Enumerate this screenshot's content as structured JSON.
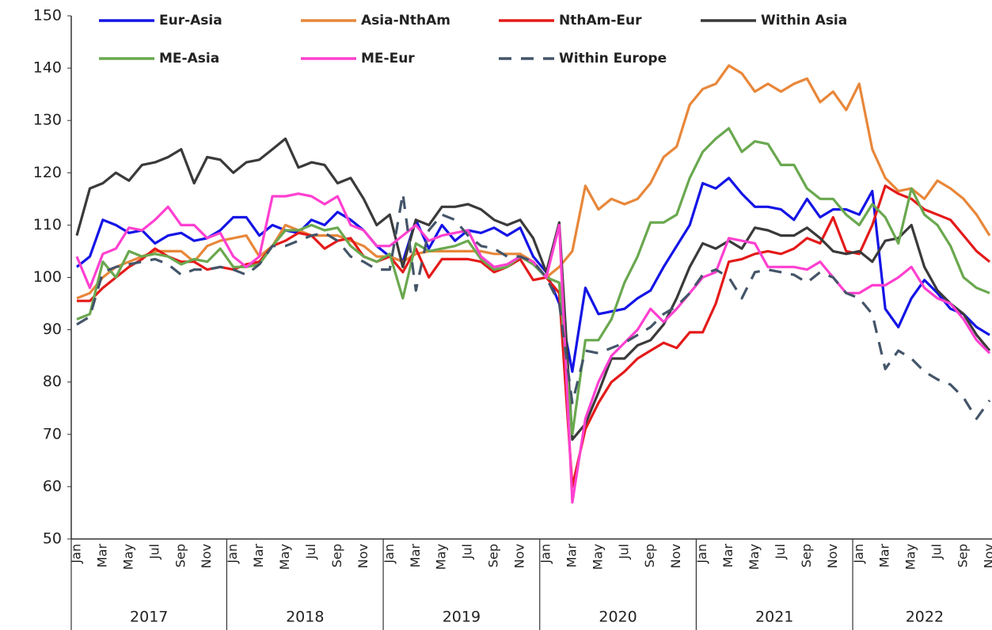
{
  "chart_data": {
    "type": "line",
    "categories": [
      "Jan",
      null,
      "Mar",
      null,
      "May",
      null,
      "Jul",
      null,
      "Sep",
      null,
      "Nov",
      null,
      "Jan",
      null,
      "Mar",
      null,
      "May",
      null,
      "Jul",
      null,
      "Sep",
      null,
      "Nov",
      null,
      "Jan",
      null,
      "Mar",
      null,
      "May",
      null,
      "Jul",
      null,
      "Sep",
      null,
      "Nov",
      null,
      "Jan",
      null,
      "Mar",
      null,
      "May",
      null,
      "Jul",
      null,
      "Sep",
      null,
      "Nov",
      null,
      "Jan",
      null,
      "Mar",
      null,
      "May",
      null,
      "Jul",
      null,
      "Sep",
      null,
      "Nov",
      null,
      "Jan",
      null,
      "Mar",
      null,
      "May",
      null,
      "Jul",
      null,
      "Sep",
      null,
      "Nov"
    ],
    "years": [
      "2017",
      "2018",
      "2019",
      "2020",
      "2021",
      "2022"
    ],
    "ylim": [
      50,
      150
    ],
    "yticks": [
      50,
      60,
      70,
      80,
      90,
      100,
      110,
      120,
      130,
      140,
      150
    ],
    "series": [
      {
        "name": "Eur-Asia",
        "color": "#1414e6",
        "values": [
          102,
          104,
          111,
          110,
          108.5,
          109,
          106.5,
          108,
          108.5,
          107,
          107.5,
          109,
          111.5,
          111.5,
          108,
          110,
          109,
          108.5,
          111,
          110,
          112.5,
          111,
          109,
          106,
          104,
          103,
          111,
          105.5,
          110,
          107,
          109,
          108.5,
          109.5,
          108,
          109.5,
          104,
          101,
          95,
          82,
          98,
          93,
          93.5,
          94,
          96,
          97.5,
          102,
          106,
          110,
          118,
          117,
          119,
          116,
          113.5,
          113.5,
          113,
          111,
          115,
          111.5,
          113,
          113,
          112,
          116.5,
          94,
          90.5,
          96,
          99.5,
          97,
          94,
          93,
          90.5,
          89
        ]
      },
      {
        "name": "Asia-NthAm",
        "color": "#e8873a",
        "values": [
          96,
          97,
          100,
          102,
          103,
          104,
          105,
          105,
          105,
          103,
          106,
          107,
          107.5,
          108,
          104,
          106,
          110,
          109,
          108,
          108,
          108,
          107,
          106,
          104,
          104,
          103,
          104.5,
          105,
          105,
          105,
          105,
          105,
          104.5,
          104.5,
          104.5,
          103,
          100,
          102,
          105,
          117.5,
          113,
          115,
          114,
          115,
          118,
          123,
          125,
          133,
          136,
          137,
          140.5,
          139,
          135.5,
          137,
          135.5,
          137,
          138,
          133.5,
          135.5,
          132,
          137,
          124.5,
          119,
          116.5,
          117,
          115,
          118.5,
          117,
          115,
          112,
          108
        ]
      },
      {
        "name": "NthAm-Eur",
        "color": "#e41a1a",
        "values": [
          95.5,
          95.5,
          98,
          100,
          102,
          103.5,
          105.5,
          104,
          103,
          103,
          101.5,
          102,
          101.5,
          102.5,
          103,
          106,
          107,
          108.5,
          108,
          105.5,
          107,
          107.5,
          104,
          103,
          104,
          101,
          105.5,
          100,
          103.5,
          103.5,
          103.5,
          103,
          101,
          102,
          103.5,
          99.5,
          100,
          97,
          60,
          71,
          76,
          80,
          82,
          84.5,
          86,
          87.5,
          86.5,
          89.5,
          89.5,
          95,
          103,
          103.5,
          104.5,
          105,
          104.5,
          105.5,
          107.5,
          106.5,
          111.5,
          105,
          104.5,
          110,
          117.5,
          116,
          115,
          113,
          112,
          111,
          108,
          105,
          103
        ]
      },
      {
        "name": "Within Asia",
        "color": "#3a3a3a",
        "values": [
          108,
          117,
          118,
          120,
          118.5,
          121.5,
          122,
          123,
          124.5,
          118,
          123,
          122.5,
          120,
          122,
          122.5,
          124.5,
          126.5,
          121,
          122,
          121.5,
          118,
          119,
          115,
          110,
          112,
          102,
          111,
          110,
          113.5,
          113.5,
          114,
          113,
          111,
          110,
          111,
          107.5,
          101,
          110.5,
          69,
          72,
          78,
          84.5,
          84.5,
          87,
          88,
          91,
          96,
          102,
          106.5,
          105.5,
          107,
          105.5,
          109.5,
          109,
          108,
          108,
          109.5,
          107.5,
          105,
          104.5,
          105,
          103,
          107,
          107.5,
          110,
          102,
          97.5,
          95,
          93,
          89,
          86
        ]
      },
      {
        "name": "ME-Asia",
        "color": "#6aa84f",
        "values": [
          92,
          93,
          103,
          100,
          105,
          104,
          104.5,
          104,
          102.5,
          103.5,
          103,
          105.5,
          102,
          102,
          102.5,
          106,
          109,
          109,
          110,
          109,
          109.5,
          106,
          104,
          103,
          104.5,
          96,
          106.5,
          105,
          105.5,
          106,
          107,
          103.5,
          101.5,
          102,
          104,
          102.5,
          100,
          99,
          70,
          88,
          88,
          92,
          99,
          104,
          110.5,
          110.5,
          112,
          119,
          124,
          126.5,
          128.5,
          124,
          126,
          125.5,
          121.5,
          121.5,
          117,
          115,
          115,
          112,
          110,
          114,
          111.5,
          106.5,
          117,
          112,
          110,
          106,
          100,
          98,
          97
        ]
      },
      {
        "name": "ME-Eur",
        "color": "#ff40d0",
        "values": [
          104,
          98,
          104.5,
          105.5,
          109.5,
          109,
          111,
          113.5,
          110,
          110,
          107.5,
          108.5,
          104,
          102,
          104,
          115.5,
          115.5,
          116,
          115.5,
          114,
          115.5,
          110,
          109,
          106,
          106,
          108,
          110,
          107,
          108,
          108.5,
          109,
          104,
          102,
          102.5,
          104,
          103,
          100,
          110,
          57,
          73,
          80,
          85,
          87.5,
          90,
          94,
          91.5,
          94,
          97,
          100,
          101,
          107.5,
          107,
          106.5,
          102,
          102,
          102,
          101.5,
          103,
          100,
          97,
          97,
          98.5,
          98.5,
          100,
          102,
          98,
          96,
          95,
          92,
          88,
          85.5
        ]
      },
      {
        "name": "Within Europe",
        "color": "#445569",
        "dash": true,
        "values": [
          91,
          92.5,
          101,
          102,
          102.5,
          103,
          103.5,
          102.5,
          100.5,
          101.5,
          101.5,
          102,
          101.5,
          100.5,
          102.5,
          106,
          106,
          107,
          108,
          108.5,
          107,
          104,
          103,
          101.5,
          101.5,
          116,
          97.5,
          109,
          112,
          111,
          108,
          106,
          105.5,
          104,
          104,
          103,
          100,
          95,
          76,
          86,
          85.5,
          86.5,
          87.5,
          89,
          90.5,
          93,
          94.5,
          97,
          100.5,
          101.5,
          100,
          96,
          101,
          101.5,
          101,
          100.5,
          99,
          101,
          100,
          97,
          96,
          93,
          82.5,
          86,
          84.5,
          82,
          80.5,
          79.5,
          77,
          73,
          76.5
        ]
      }
    ]
  }
}
